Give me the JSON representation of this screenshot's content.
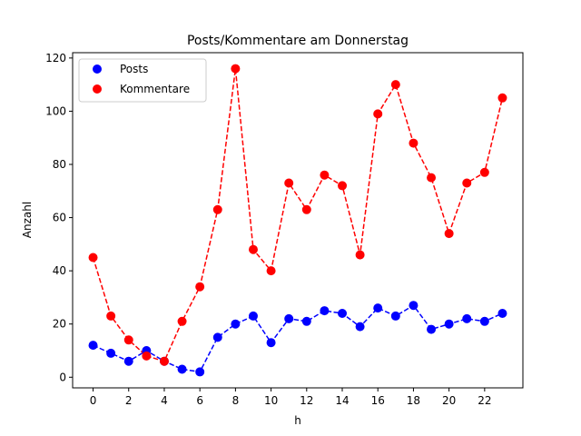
{
  "chart_data": {
    "type": "line",
    "title": "Posts/Kommentare am Donnerstag",
    "xlabel": "h",
    "ylabel": "Anzahl",
    "xlim": [
      -1.15,
      24.15
    ],
    "ylim": [
      -4,
      122
    ],
    "xticks": [
      0,
      2,
      4,
      6,
      8,
      10,
      12,
      14,
      16,
      18,
      20,
      22
    ],
    "xtick_labels": [
      "0",
      "2",
      "4",
      "6",
      "8",
      "10",
      "12",
      "14",
      "16",
      "18",
      "20",
      "22"
    ],
    "yticks": [
      0,
      20,
      40,
      60,
      80,
      100,
      120
    ],
    "ytick_labels": [
      "0",
      "20",
      "40",
      "60",
      "80",
      "100",
      "120"
    ],
    "grid": false,
    "legend_position": "top-left",
    "x": [
      0,
      1,
      2,
      3,
      4,
      5,
      6,
      7,
      8,
      9,
      10,
      11,
      12,
      13,
      14,
      15,
      16,
      17,
      18,
      19,
      20,
      21,
      22,
      23
    ],
    "series": [
      {
        "name": "Posts",
        "color": "#0000ff",
        "line_style": "dashed",
        "marker": "circle",
        "values": [
          12,
          9,
          6,
          10,
          6,
          3,
          2,
          15,
          20,
          23,
          13,
          22,
          21,
          25,
          24,
          19,
          26,
          23,
          27,
          18,
          20,
          22,
          21,
          24
        ]
      },
      {
        "name": "Kommentare",
        "color": "#ff0000",
        "line_style": "dashed",
        "marker": "circle",
        "values": [
          45,
          23,
          14,
          8,
          6,
          21,
          34,
          63,
          116,
          48,
          40,
          73,
          63,
          76,
          72,
          46,
          99,
          110,
          88,
          75,
          54,
          73,
          77,
          105
        ]
      }
    ]
  }
}
